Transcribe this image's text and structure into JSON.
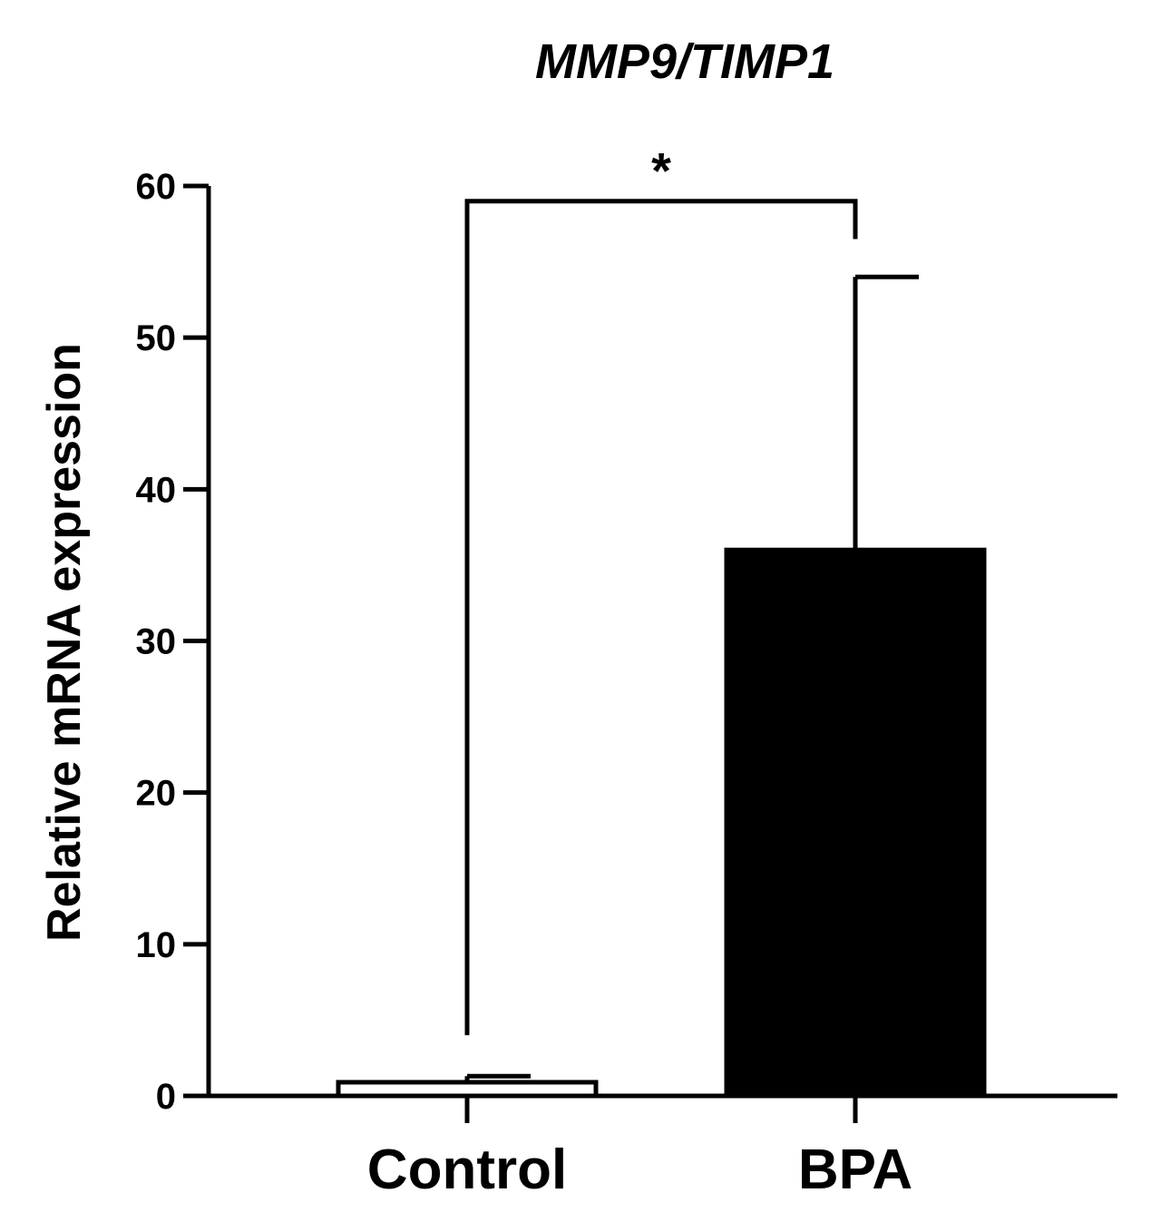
{
  "chart_data": {
    "type": "bar",
    "title": "MMP9/TIMP1",
    "xlabel": "",
    "ylabel": "Relative mRNA expression",
    "ylim": [
      0,
      60
    ],
    "yticks": [
      0,
      10,
      20,
      30,
      40,
      50,
      60
    ],
    "ytick_labels": [
      "0",
      "10",
      "20",
      "30",
      "40",
      "50",
      "60"
    ],
    "categories": [
      "Control",
      "BPA"
    ],
    "values": [
      0.9,
      36
    ],
    "errors": [
      0.4,
      18
    ],
    "bar_fills": [
      "#ffffff",
      "#000000"
    ],
    "bar_stroke": "#000000",
    "grid": false,
    "significance": {
      "label": "*",
      "from": "Control",
      "to": "BPA",
      "bracket_y": 59,
      "left_leg_bottom": 4,
      "right_leg_bottom": 56.5
    }
  }
}
